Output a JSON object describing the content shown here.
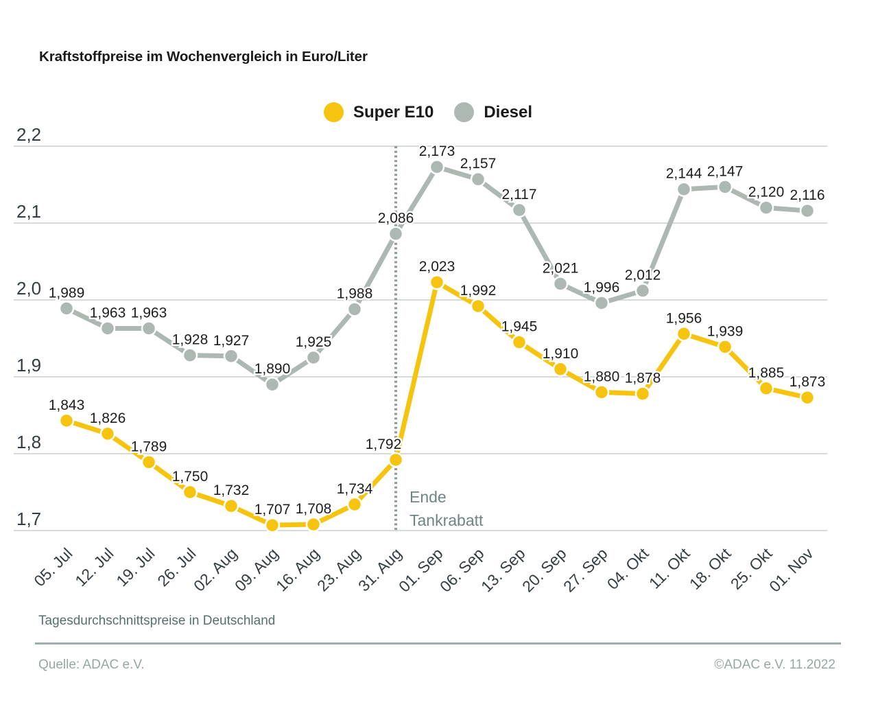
{
  "title": "Kraftstoffpreise im Wochenvergleich in Euro/Liter",
  "legend": {
    "items": [
      {
        "label": "Super E10",
        "color": "#f6c40e"
      },
      {
        "label": "Diesel",
        "color": "#aeb8b3"
      }
    ]
  },
  "chart_data": {
    "type": "line",
    "title": "Kraftstoffpreise im Wochenvergleich in Euro/Liter",
    "categories": [
      "05. Jul",
      "12. Jul",
      "19. Jul",
      "26. Jul",
      "02. Aug",
      "09. Aug",
      "16. Aug",
      "23. Aug",
      "31. Aug",
      "01. Sep",
      "06. Sep",
      "13. Sep",
      "20. Sep",
      "27. Sep",
      "04. Okt",
      "11. Okt",
      "18. Okt",
      "25. Okt",
      "01. Nov"
    ],
    "series": [
      {
        "name": "Super E10",
        "color": "#f6c40e",
        "values": [
          1.843,
          1.826,
          1.789,
          1.75,
          1.732,
          1.707,
          1.708,
          1.734,
          1.792,
          2.023,
          1.992,
          1.945,
          1.91,
          1.88,
          1.878,
          1.956,
          1.939,
          1.885,
          1.873
        ]
      },
      {
        "name": "Diesel",
        "color": "#aeb8b3",
        "values": [
          1.989,
          1.963,
          1.963,
          1.928,
          1.927,
          1.89,
          1.925,
          1.988,
          2.086,
          2.173,
          2.157,
          2.117,
          2.021,
          1.996,
          2.012,
          2.144,
          2.147,
          2.12,
          2.116
        ]
      }
    ],
    "y_ticks": [
      {
        "label": "2,2",
        "value": 2.2
      },
      {
        "label": "2,1",
        "value": 2.1
      },
      {
        "label": "2,0",
        "value": 2.0
      },
      {
        "label": "1,9",
        "value": 1.9
      },
      {
        "label": "1,8",
        "value": 1.8
      },
      {
        "label": "1,7",
        "value": 1.7
      }
    ],
    "ylim": [
      1.7,
      2.2
    ],
    "grid": true,
    "legend_position": "top-center",
    "annotation": {
      "line_category": "31. Aug",
      "lines": [
        "Ende",
        "Tankrabatt"
      ]
    },
    "colors": {
      "gridline": "#c8cdcd",
      "dotted_line": "#8d9b99",
      "tick_text": "#333e44",
      "data_label_text": "#1d1d1b"
    }
  },
  "footer": {
    "note": "Tagesdurchschnittspreise in Deutschland",
    "source": "Quelle: ADAC e.V.",
    "copyright": "©ADAC e.V.  11.2022"
  }
}
